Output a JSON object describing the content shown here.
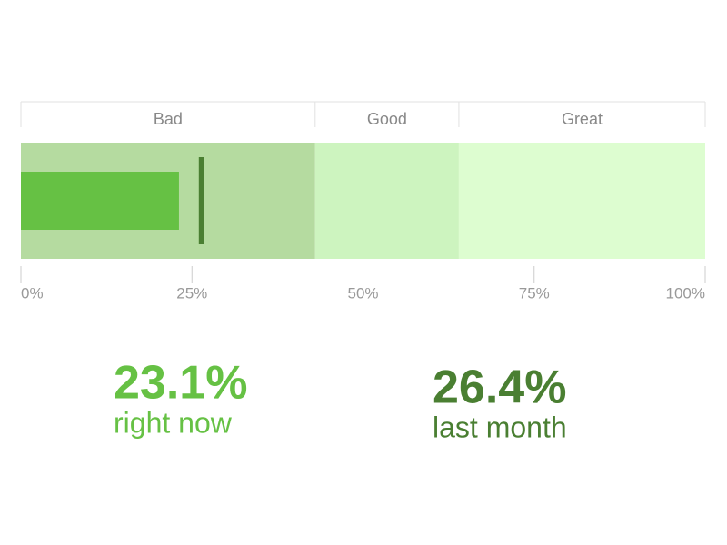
{
  "chart_data": {
    "type": "bullet",
    "xlim": [
      0,
      100
    ],
    "xticks": [
      {
        "value": 0,
        "label": "0%"
      },
      {
        "value": 25,
        "label": "25%"
      },
      {
        "value": 50,
        "label": "50%"
      },
      {
        "value": 75,
        "label": "75%"
      },
      {
        "value": 100,
        "label": "100%"
      }
    ],
    "ranges": [
      {
        "name": "Bad",
        "end": 43,
        "color": "#b5dba0"
      },
      {
        "name": "Good",
        "end": 64,
        "color": "#cdf4bf"
      },
      {
        "name": "Great",
        "end": 100,
        "color": "#ddfdd0"
      }
    ],
    "series": [
      {
        "name": "right now",
        "mark": "bar",
        "color": "#66c144",
        "values": [
          23.1
        ],
        "value_labels": [
          "23.1%"
        ]
      },
      {
        "name": "last month",
        "mark": "marker",
        "color": "#4a7f32",
        "values": [
          26.4
        ],
        "value_labels": [
          "26.4%"
        ]
      }
    ]
  }
}
